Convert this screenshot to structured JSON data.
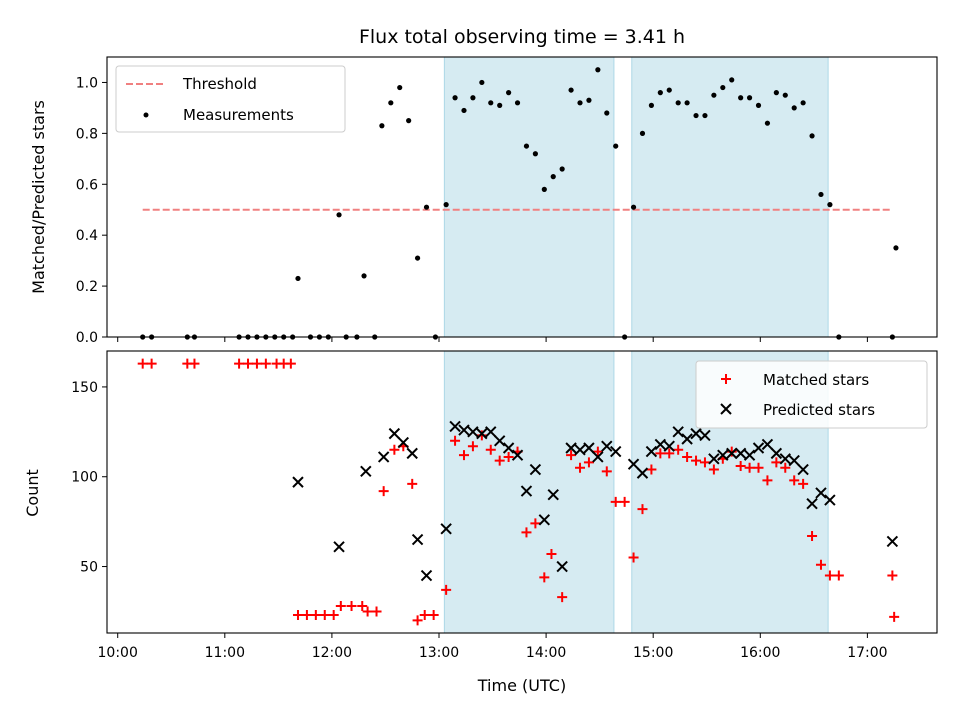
{
  "chart_data": [
    {
      "type": "scatter",
      "title": "Flux total observing time = 3.41 h",
      "xlabel": "",
      "ylabel": "Matched/Predicted stars",
      "ylim": [
        0,
        1.1
      ],
      "yticks": [
        "0.0",
        "0.2",
        "0.4",
        "0.6",
        "0.8",
        "1.0"
      ],
      "legend_position": "top-left",
      "shaded_intervals": [
        [
          "13:03",
          "14:38"
        ],
        [
          "14:48",
          "16:38"
        ]
      ],
      "threshold": {
        "name": "Threshold",
        "value": 0.5,
        "x_range": [
          "10:14",
          "17:14"
        ],
        "color": "#f08080"
      },
      "series": [
        {
          "name": "Measurements",
          "color": "#000000",
          "points": [
            [
              "10:14",
              0.0
            ],
            [
              "10:19",
              0.0
            ],
            [
              "10:39",
              0.0
            ],
            [
              "10:43",
              0.0
            ],
            [
              "11:08",
              0.0
            ],
            [
              "11:13",
              0.0
            ],
            [
              "11:18",
              0.0
            ],
            [
              "11:23",
              0.0
            ],
            [
              "11:28",
              0.0
            ],
            [
              "11:33",
              0.0
            ],
            [
              "11:38",
              0.0
            ],
            [
              "11:41",
              0.23
            ],
            [
              "11:48",
              0.0
            ],
            [
              "11:53",
              0.0
            ],
            [
              "11:58",
              0.0
            ],
            [
              "12:04",
              0.48
            ],
            [
              "12:08",
              0.0
            ],
            [
              "12:14",
              0.0
            ],
            [
              "12:18",
              0.24
            ],
            [
              "12:24",
              0.0
            ],
            [
              "12:28",
              0.83
            ],
            [
              "12:33",
              0.92
            ],
            [
              "12:38",
              0.98
            ],
            [
              "12:43",
              0.85
            ],
            [
              "12:48",
              0.31
            ],
            [
              "12:53",
              0.51
            ],
            [
              "12:58",
              0.0
            ],
            [
              "13:04",
              0.52
            ],
            [
              "13:09",
              0.94
            ],
            [
              "13:14",
              0.89
            ],
            [
              "13:19",
              0.94
            ],
            [
              "13:24",
              1.0
            ],
            [
              "13:29",
              0.92
            ],
            [
              "13:34",
              0.91
            ],
            [
              "13:39",
              0.96
            ],
            [
              "13:44",
              0.92
            ],
            [
              "13:49",
              0.75
            ],
            [
              "13:54",
              0.72
            ],
            [
              "13:59",
              0.58
            ],
            [
              "14:04",
              0.63
            ],
            [
              "14:09",
              0.66
            ],
            [
              "14:14",
              0.97
            ],
            [
              "14:19",
              0.92
            ],
            [
              "14:24",
              0.93
            ],
            [
              "14:29",
              1.05
            ],
            [
              "14:34",
              0.88
            ],
            [
              "14:39",
              0.75
            ],
            [
              "14:44",
              0.0
            ],
            [
              "14:49",
              0.51
            ],
            [
              "14:54",
              0.8
            ],
            [
              "14:59",
              0.91
            ],
            [
              "15:04",
              0.96
            ],
            [
              "15:09",
              0.97
            ],
            [
              "15:14",
              0.92
            ],
            [
              "15:19",
              0.92
            ],
            [
              "15:24",
              0.87
            ],
            [
              "15:29",
              0.87
            ],
            [
              "15:34",
              0.95
            ],
            [
              "15:39",
              0.98
            ],
            [
              "15:44",
              1.01
            ],
            [
              "15:49",
              0.94
            ],
            [
              "15:54",
              0.94
            ],
            [
              "15:59",
              0.91
            ],
            [
              "16:04",
              0.84
            ],
            [
              "16:09",
              0.96
            ],
            [
              "16:14",
              0.95
            ],
            [
              "16:19",
              0.9
            ],
            [
              "16:24",
              0.92
            ],
            [
              "16:29",
              0.79
            ],
            [
              "16:34",
              0.56
            ],
            [
              "16:39",
              0.52
            ],
            [
              "16:44",
              0.0
            ],
            [
              "17:14",
              0.0
            ],
            [
              "17:16",
              0.35
            ]
          ]
        }
      ]
    },
    {
      "type": "scatter",
      "title": "",
      "xlabel": "Time (UTC)",
      "ylabel": "Count",
      "ylim": [
        13,
        170
      ],
      "yticks": [
        "50",
        "100",
        "150"
      ],
      "xticks": [
        "10:00",
        "11:00",
        "12:00",
        "13:00",
        "14:00",
        "15:00",
        "16:00",
        "17:00"
      ],
      "xlim": [
        "09:54",
        "17:39"
      ],
      "legend_position": "top-right",
      "series": [
        {
          "name": "Matched stars",
          "marker": "+",
          "color": "#ff0000",
          "points": [
            [
              "10:14",
              163
            ],
            [
              "10:19",
              163
            ],
            [
              "10:39",
              163
            ],
            [
              "10:43",
              163
            ],
            [
              "11:08",
              163
            ],
            [
              "11:13",
              163
            ],
            [
              "11:18",
              163
            ],
            [
              "11:23",
              163
            ],
            [
              "11:29",
              163
            ],
            [
              "11:33",
              163
            ],
            [
              "11:37",
              163
            ],
            [
              "11:41",
              23
            ],
            [
              "11:46",
              23
            ],
            [
              "11:51",
              23
            ],
            [
              "11:56",
              23
            ],
            [
              "12:01",
              23
            ],
            [
              "12:05",
              28
            ],
            [
              "12:11",
              28
            ],
            [
              "12:17",
              28
            ],
            [
              "12:20",
              25
            ],
            [
              "12:25",
              25
            ],
            [
              "12:29",
              92
            ],
            [
              "12:35",
              115
            ],
            [
              "12:40",
              117
            ],
            [
              "12:45",
              96
            ],
            [
              "12:48",
              20
            ],
            [
              "12:52",
              23
            ],
            [
              "12:57",
              23
            ],
            [
              "13:04",
              37
            ],
            [
              "13:09",
              120
            ],
            [
              "13:14",
              112
            ],
            [
              "13:19",
              117
            ],
            [
              "13:24",
              123
            ],
            [
              "13:29",
              115
            ],
            [
              "13:34",
              109
            ],
            [
              "13:39",
              111
            ],
            [
              "13:44",
              114
            ],
            [
              "13:49",
              69
            ],
            [
              "13:54",
              74
            ],
            [
              "13:59",
              44
            ],
            [
              "14:03",
              57
            ],
            [
              "14:09",
              33
            ],
            [
              "14:14",
              112
            ],
            [
              "14:19",
              105
            ],
            [
              "14:24",
              108
            ],
            [
              "14:29",
              114
            ],
            [
              "14:34",
              103
            ],
            [
              "14:39",
              86
            ],
            [
              "14:44",
              86
            ],
            [
              "14:49",
              55
            ],
            [
              "14:54",
              82
            ],
            [
              "14:59",
              104
            ],
            [
              "15:04",
              113
            ],
            [
              "15:09",
              113
            ],
            [
              "15:14",
              115
            ],
            [
              "15:19",
              111
            ],
            [
              "15:24",
              109
            ],
            [
              "15:29",
              108
            ],
            [
              "15:34",
              104
            ],
            [
              "15:39",
              110
            ],
            [
              "15:44",
              114
            ],
            [
              "15:49",
              106
            ],
            [
              "15:54",
              105
            ],
            [
              "15:59",
              105
            ],
            [
              "16:04",
              98
            ],
            [
              "16:09",
              108
            ],
            [
              "16:14",
              105
            ],
            [
              "16:19",
              98
            ],
            [
              "16:24",
              96
            ],
            [
              "16:29",
              67
            ],
            [
              "16:34",
              51
            ],
            [
              "16:39",
              45
            ],
            [
              "16:44",
              45
            ],
            [
              "17:14",
              45
            ],
            [
              "17:15",
              22
            ]
          ]
        },
        {
          "name": "Predicted stars",
          "marker": "x",
          "color": "#000000",
          "points": [
            [
              "11:41",
              97
            ],
            [
              "12:04",
              61
            ],
            [
              "12:19",
              103
            ],
            [
              "12:29",
              111
            ],
            [
              "12:35",
              124
            ],
            [
              "12:40",
              119
            ],
            [
              "12:45",
              113
            ],
            [
              "12:48",
              65
            ],
            [
              "12:53",
              45
            ],
            [
              "13:04",
              71
            ],
            [
              "13:09",
              128
            ],
            [
              "13:14",
              126
            ],
            [
              "13:19",
              125
            ],
            [
              "13:24",
              124
            ],
            [
              "13:29",
              125
            ],
            [
              "13:34",
              120
            ],
            [
              "13:39",
              116
            ],
            [
              "13:44",
              112
            ],
            [
              "13:49",
              92
            ],
            [
              "13:54",
              104
            ],
            [
              "13:59",
              76
            ],
            [
              "14:04",
              90
            ],
            [
              "14:09",
              50
            ],
            [
              "14:14",
              116
            ],
            [
              "14:19",
              115
            ],
            [
              "14:24",
              116
            ],
            [
              "14:29",
              111
            ],
            [
              "14:34",
              117
            ],
            [
              "14:39",
              114
            ],
            [
              "14:49",
              107
            ],
            [
              "14:54",
              102
            ],
            [
              "14:59",
              114
            ],
            [
              "15:04",
              118
            ],
            [
              "15:09",
              117
            ],
            [
              "15:14",
              125
            ],
            [
              "15:19",
              121
            ],
            [
              "15:24",
              124
            ],
            [
              "15:29",
              123
            ],
            [
              "15:34",
              110
            ],
            [
              "15:39",
              112
            ],
            [
              "15:44",
              113
            ],
            [
              "15:49",
              113
            ],
            [
              "15:54",
              112
            ],
            [
              "15:59",
              116
            ],
            [
              "16:04",
              118
            ],
            [
              "16:09",
              113
            ],
            [
              "16:14",
              110
            ],
            [
              "16:19",
              109
            ],
            [
              "16:24",
              104
            ],
            [
              "16:29",
              85
            ],
            [
              "16:34",
              91
            ],
            [
              "16:39",
              87
            ],
            [
              "17:14",
              64
            ]
          ]
        }
      ]
    }
  ]
}
